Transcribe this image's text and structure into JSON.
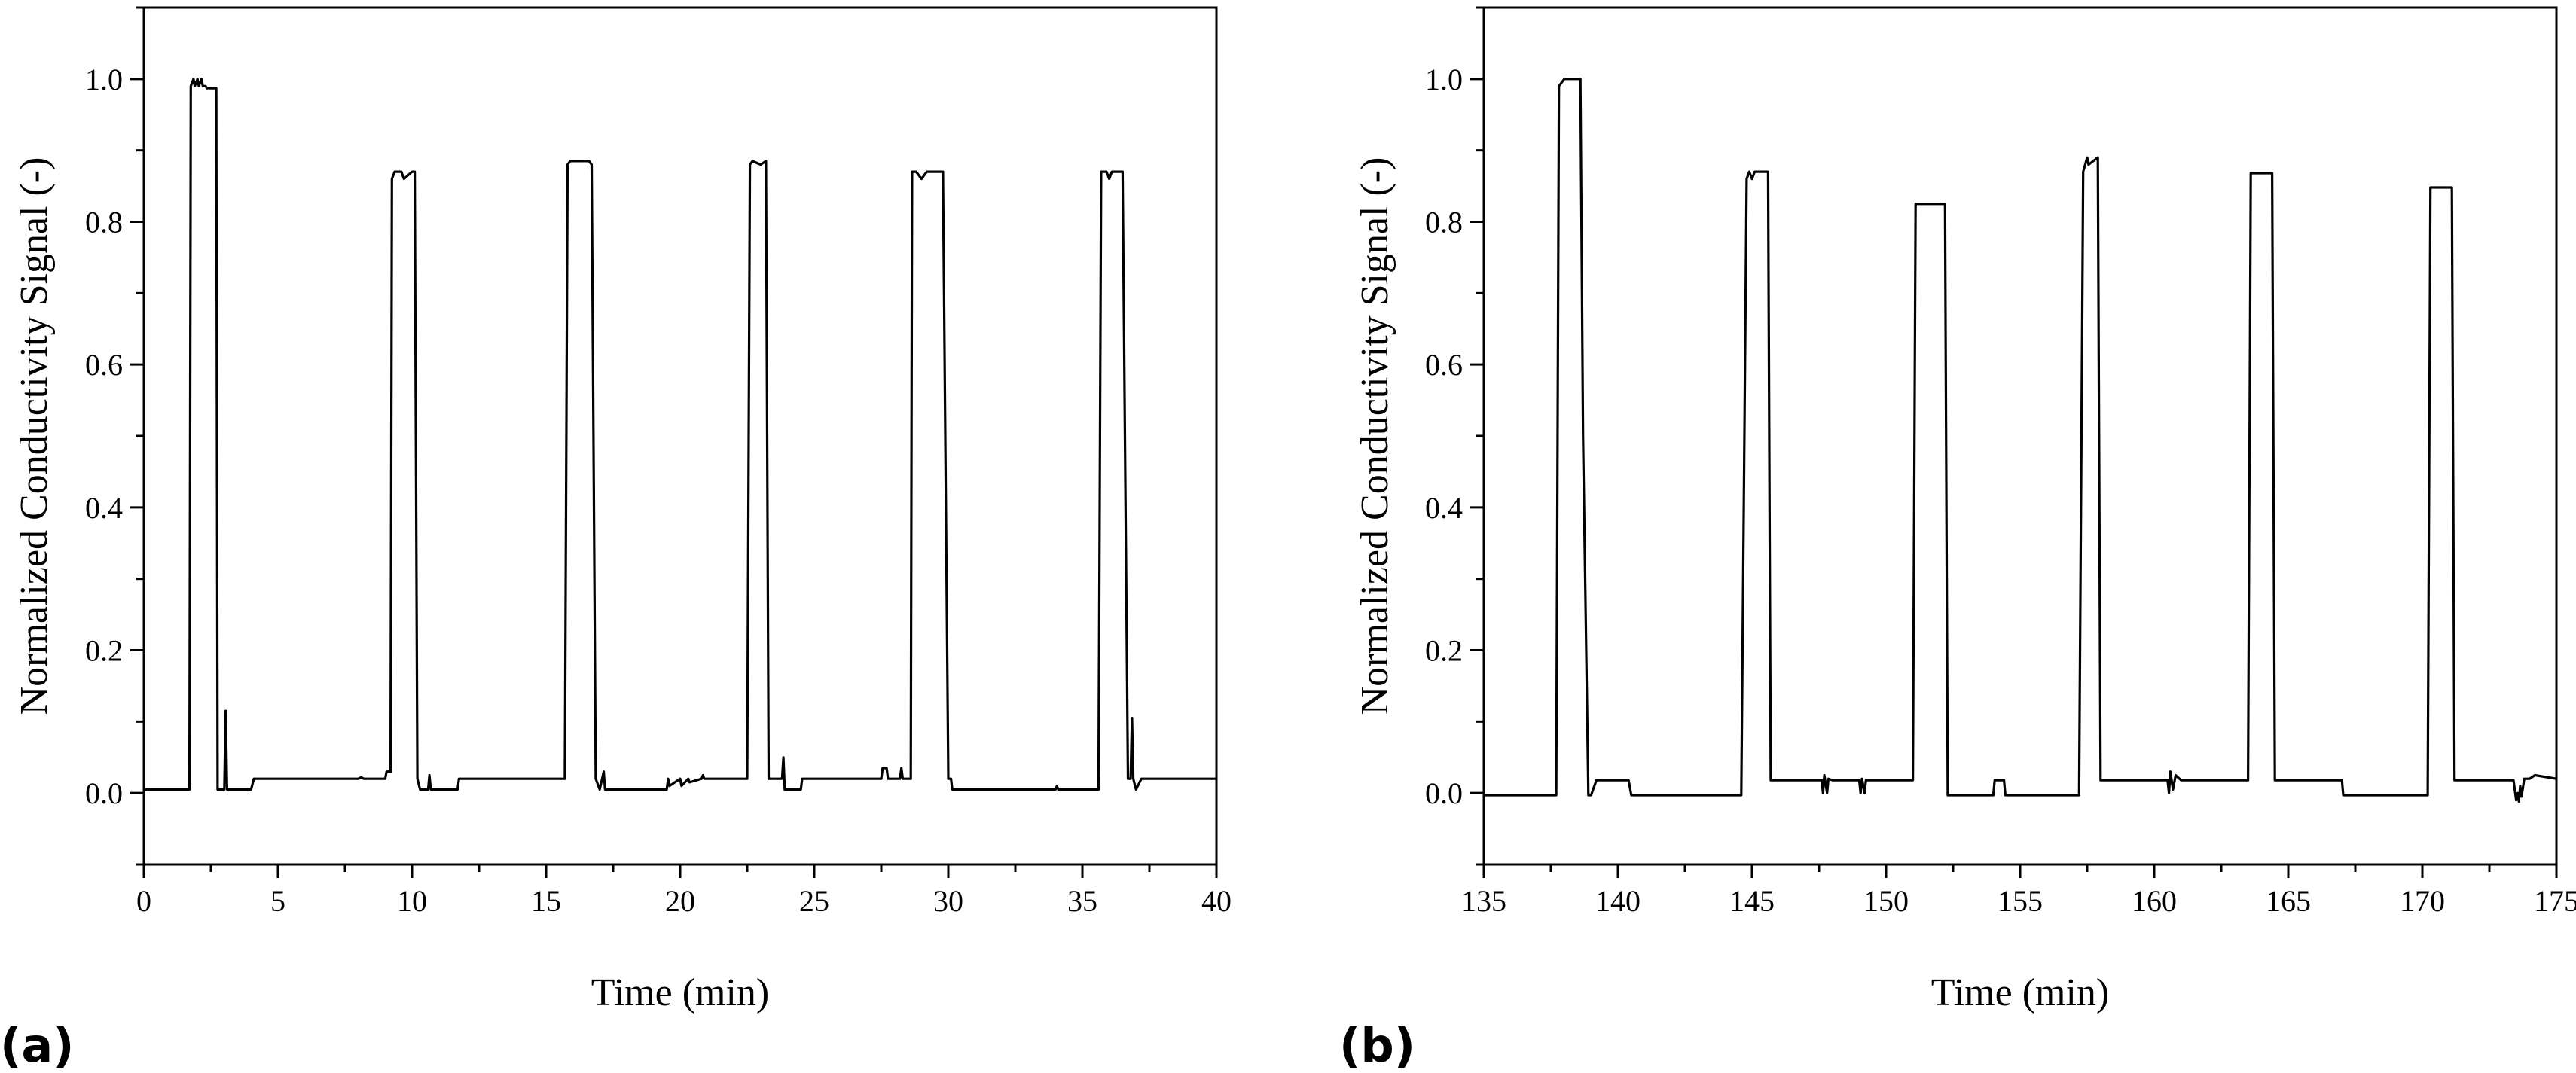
{
  "chart_data": [
    {
      "type": "line",
      "panel_label": "(a)",
      "xlabel": "Time (min)",
      "ylabel": "Normalized Conductivity Signal (-)",
      "xlim": [
        0,
        40
      ],
      "ylim": [
        -0.1,
        1.1
      ],
      "xticks": [
        0,
        5,
        10,
        15,
        20,
        25,
        30,
        35,
        40
      ],
      "yticks": [
        0.0,
        0.2,
        0.4,
        0.6,
        0.8,
        1.0
      ],
      "xtick_labels": [
        "0",
        "5",
        "10",
        "15",
        "20",
        "25",
        "30",
        "35",
        "40"
      ],
      "ytick_labels": [
        "0.0",
        "0.2",
        "0.4",
        "0.6",
        "0.8",
        "1.0"
      ],
      "grid": false,
      "series": [
        {
          "x": [
            0,
            1.7,
            1.75,
            1.85,
            1.9,
            2.0,
            2.05,
            2.15,
            2.2,
            2.3,
            2.35,
            2.7,
            2.75,
            2.85,
            3.0,
            3.05,
            3.1,
            3.15,
            3.5,
            4.0,
            4.1,
            8.0,
            8.1,
            8.2,
            9.0,
            9.05,
            9.2,
            9.25,
            9.35,
            9.4,
            9.6,
            9.7,
            10.0,
            10.1,
            10.2,
            10.3,
            10.6,
            10.65,
            10.7,
            11.0,
            11.7,
            11.75,
            15.7,
            15.8,
            15.9,
            16.0,
            16.6,
            16.7,
            16.85,
            17.0,
            17.15,
            17.2,
            17.3,
            19.5,
            19.55,
            19.6,
            20.0,
            20.05,
            20.3,
            20.35,
            20.8,
            20.85,
            20.9,
            22.5,
            22.6,
            22.7,
            23.0,
            23.2,
            23.3,
            23.5,
            23.8,
            23.85,
            23.9,
            24.5,
            24.55,
            27.5,
            27.55,
            27.7,
            27.75,
            28.2,
            28.25,
            28.3,
            28.6,
            28.65,
            28.8,
            29.0,
            29.2,
            29.6,
            29.8,
            30.0,
            30.1,
            30.15,
            30.2,
            34.0,
            34.05,
            34.1,
            35.6,
            35.7,
            35.9,
            36.0,
            36.1,
            36.4,
            36.5,
            36.7,
            36.8,
            36.85,
            36.9,
            37.0,
            37.2,
            37.3,
            40.0
          ],
          "y": [
            0.005,
            0.005,
            0.99,
            1.0,
            0.99,
            1.0,
            0.99,
            1.0,
            0.99,
            0.99,
            0.987,
            0.987,
            0.005,
            0.005,
            0.005,
            0.115,
            0.005,
            0.005,
            0.005,
            0.005,
            0.02,
            0.02,
            0.022,
            0.02,
            0.02,
            0.03,
            0.03,
            0.86,
            0.87,
            0.87,
            0.87,
            0.86,
            0.87,
            0.87,
            0.02,
            0.005,
            0.005,
            0.025,
            0.005,
            0.005,
            0.005,
            0.02,
            0.02,
            0.88,
            0.885,
            0.885,
            0.885,
            0.88,
            0.02,
            0.005,
            0.03,
            0.005,
            0.005,
            0.005,
            0.02,
            0.01,
            0.02,
            0.01,
            0.02,
            0.015,
            0.02,
            0.025,
            0.02,
            0.02,
            0.88,
            0.885,
            0.88,
            0.885,
            0.02,
            0.02,
            0.02,
            0.05,
            0.005,
            0.005,
            0.02,
            0.02,
            0.035,
            0.035,
            0.02,
            0.02,
            0.035,
            0.02,
            0.02,
            0.87,
            0.87,
            0.86,
            0.87,
            0.87,
            0.87,
            0.02,
            0.02,
            0.005,
            0.005,
            0.005,
            0.01,
            0.005,
            0.005,
            0.87,
            0.87,
            0.86,
            0.87,
            0.87,
            0.87,
            0.02,
            0.02,
            0.105,
            0.02,
            0.005,
            0.02,
            0.02,
            0.02
          ]
        }
      ]
    },
    {
      "type": "line",
      "panel_label": "(b)",
      "xlabel": "Time (min)",
      "ylabel": "Normalized Conductivity Signal (-)",
      "xlim": [
        135,
        175
      ],
      "ylim": [
        -0.1,
        1.1
      ],
      "xticks": [
        135,
        140,
        145,
        150,
        155,
        160,
        165,
        170,
        175
      ],
      "yticks": [
        0.0,
        0.2,
        0.4,
        0.6,
        0.8,
        1.0
      ],
      "xtick_labels": [
        "135",
        "140",
        "145",
        "150",
        "155",
        "160",
        "165",
        "170",
        "175"
      ],
      "ytick_labels": [
        "0.0",
        "0.2",
        "0.4",
        "0.6",
        "0.8",
        "1.0"
      ],
      "grid": false,
      "series": [
        {
          "x": [
            135,
            137.7,
            137.8,
            138.0,
            138.6,
            138.7,
            138.9,
            139.0,
            139.2,
            139.3,
            140.4,
            140.5,
            144.6,
            144.8,
            144.9,
            145.0,
            145.1,
            145.2,
            145.6,
            145.7,
            147.6,
            147.65,
            147.7,
            147.8,
            147.85,
            148.0,
            148.05,
            149.0,
            149.05,
            149.1,
            149.2,
            149.25,
            149.3,
            151.0,
            151.1,
            152.2,
            152.3,
            154.0,
            154.05,
            154.4,
            154.45,
            157.2,
            157.35,
            157.5,
            157.55,
            157.9,
            158.0,
            160.5,
            160.55,
            160.6,
            160.7,
            160.8,
            161.0,
            161.2,
            161.3,
            163.5,
            163.6,
            164.4,
            164.5,
            167.0,
            167.05,
            170.2,
            170.3,
            171.1,
            171.2,
            173.4,
            173.5,
            173.55,
            173.6,
            173.65,
            173.7,
            173.8,
            174.0,
            174.2,
            175.0
          ],
          "y": [
            -0.003,
            -0.003,
            0.99,
            1.0,
            1.0,
            0.5,
            -0.003,
            -0.003,
            0.018,
            0.018,
            0.018,
            -0.003,
            -0.003,
            0.86,
            0.87,
            0.86,
            0.87,
            0.87,
            0.87,
            0.018,
            0.018,
            0.0,
            0.025,
            0.0,
            0.02,
            0.018,
            0.018,
            0.018,
            0.0,
            0.02,
            0.0,
            0.018,
            0.018,
            0.018,
            0.825,
            0.825,
            -0.003,
            -0.003,
            0.018,
            0.018,
            -0.003,
            -0.003,
            0.87,
            0.89,
            0.88,
            0.89,
            0.018,
            0.018,
            0.0,
            0.03,
            0.005,
            0.025,
            0.018,
            0.018,
            0.018,
            0.018,
            0.868,
            0.868,
            0.018,
            0.018,
            -0.003,
            -0.003,
            0.848,
            0.848,
            0.018,
            0.018,
            -0.01,
            0.0,
            -0.012,
            0.01,
            -0.005,
            0.02,
            0.02,
            0.025,
            0.02
          ]
        }
      ]
    }
  ]
}
